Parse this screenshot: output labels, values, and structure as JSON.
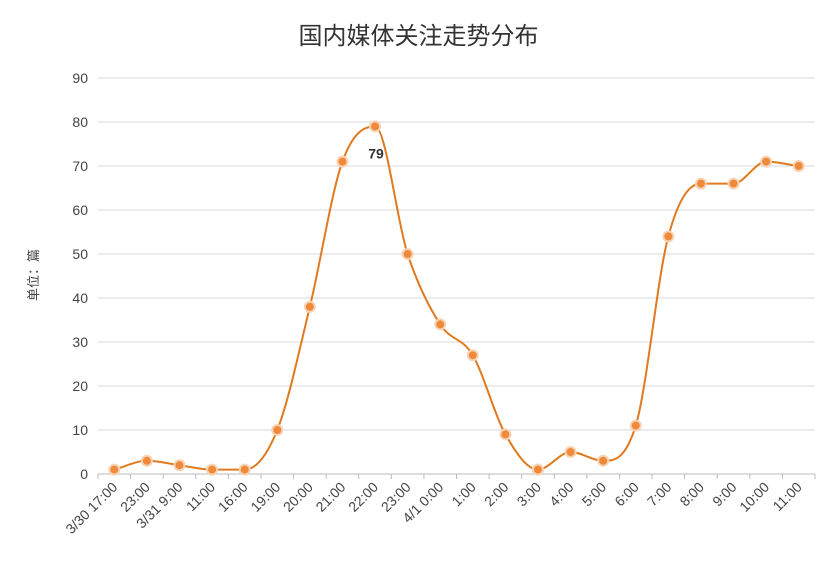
{
  "chart_data": {
    "type": "line",
    "title": "国内媒体关注走势分布",
    "ylabel": "单位：篇",
    "xlabel": "",
    "ylim": [
      0,
      90
    ],
    "y_ticks": [
      0,
      10,
      20,
      30,
      40,
      50,
      60,
      70,
      80,
      90
    ],
    "grid": true,
    "smooth": true,
    "categories": [
      "3/30 17:00",
      "23:00",
      "3/31 9:00",
      "11:00",
      "16:00",
      "19:00",
      "20:00",
      "21:00",
      "22:00",
      "23:00",
      "4/1 0:00",
      "1:00",
      "2:00",
      "3:00",
      "4:00",
      "5:00",
      "6:00",
      "7:00",
      "8:00",
      "9:00",
      "10:00",
      "11:00"
    ],
    "series": [
      {
        "values": [
          1,
          3,
          2,
          1,
          1,
          10,
          38,
          71,
          79,
          50,
          34,
          27,
          9,
          1,
          5,
          3,
          11,
          54,
          66,
          66,
          71,
          70
        ]
      }
    ],
    "annotations": [
      {
        "category": "22:00",
        "label": "79"
      }
    ],
    "colors": {
      "line": "#e07a1f",
      "marker": "#f08a3a",
      "marker_border": "#f6d3b4",
      "grid": "#d9d9d9"
    }
  }
}
